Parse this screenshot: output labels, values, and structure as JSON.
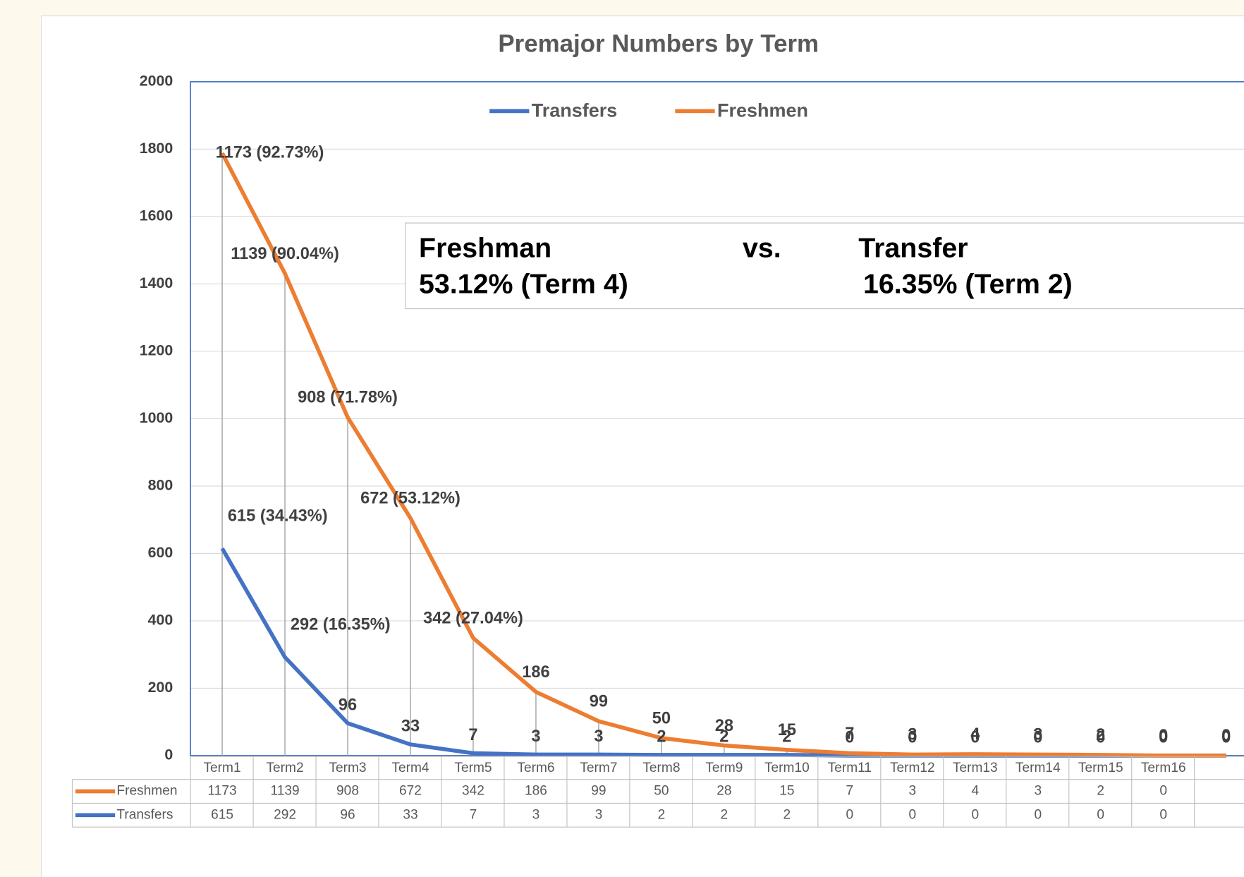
{
  "chart_data": {
    "type": "stacked_line",
    "title": "Premajor Numbers by Term",
    "categories": [
      "Term1",
      "Term2",
      "Term3",
      "Term4",
      "Term5",
      "Term6",
      "Term7",
      "Term8",
      "Term9",
      "Term10",
      "Term11",
      "Term12",
      "Term13",
      "Term14",
      "Term15",
      "Term16",
      null
    ],
    "series": [
      {
        "name": "Transfers",
        "color": "#4472c4",
        "values": [
          615,
          292,
          96,
          33,
          7,
          3,
          3,
          2,
          2,
          2,
          0,
          0,
          0,
          0,
          0,
          0,
          0
        ],
        "value_labels": [
          "615 (34.43%)",
          "292 (16.35%)",
          "96",
          "33",
          "7",
          "3",
          "3",
          "2",
          "2",
          "2",
          "0",
          "0",
          "0",
          "0",
          "0",
          "0",
          "0"
        ]
      },
      {
        "name": "Freshmen",
        "color": "#ed7d31",
        "values": [
          1173,
          1139,
          908,
          672,
          342,
          186,
          99,
          50,
          28,
          15,
          7,
          3,
          4,
          3,
          2,
          0,
          0
        ],
        "value_labels": [
          "1173 (92.73%)",
          "1139 (90.04%)",
          "908 (71.78%)",
          "672 (53.12%)",
          "342 (27.04%)",
          "186",
          "99",
          "50",
          "28",
          "15",
          "7",
          "3",
          "4",
          "3",
          "2",
          "0",
          "0"
        ]
      }
    ],
    "ylim": [
      0,
      2000
    ],
    "yticks": [
      0,
      200,
      400,
      600,
      800,
      1000,
      1200,
      1400,
      1600,
      1800,
      2000
    ],
    "grid": true,
    "legend": "top",
    "data_table": true,
    "annotation": {
      "left_title": "Freshman",
      "middle": "vs.",
      "right_title": "Transfer",
      "left_value": "53.12% (Term 4)",
      "right_value": "16.35% (Term 2)"
    }
  }
}
